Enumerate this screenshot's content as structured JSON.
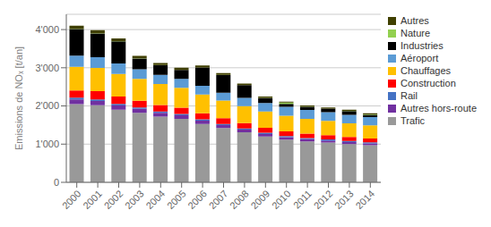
{
  "chart_data": {
    "type": "bar",
    "stacked": true,
    "ylabel": "Emissions de NOₓ [t/an]",
    "categories": [
      "2000",
      "2001",
      "2002",
      "2003",
      "2004",
      "2005",
      "2006",
      "2007",
      "2008",
      "2009",
      "2010",
      "2011",
      "2012",
      "2013",
      "2014"
    ],
    "series": [
      {
        "name": "Trafic",
        "color": "#999999",
        "values": [
          2050,
          2020,
          1900,
          1820,
          1720,
          1660,
          1530,
          1420,
          1310,
          1200,
          1120,
          1070,
          1040,
          1000,
          970
        ]
      },
      {
        "name": "Autres hors-route",
        "color": "#7030a0",
        "values": [
          120,
          110,
          115,
          105,
          100,
          95,
          85,
          75,
          70,
          65,
          60,
          58,
          55,
          52,
          50
        ]
      },
      {
        "name": "Rail",
        "color": "#4472c4",
        "values": [
          45,
          42,
          40,
          38,
          37,
          36,
          35,
          34,
          33,
          32,
          31,
          30,
          30,
          29,
          28
        ]
      },
      {
        "name": "Construction",
        "color": "#ff0000",
        "values": [
          190,
          215,
          190,
          175,
          170,
          165,
          160,
          150,
          140,
          130,
          125,
          115,
          110,
          105,
          100
        ]
      },
      {
        "name": "Chauffages",
        "color": "#ffc000",
        "values": [
          620,
          610,
          590,
          570,
          545,
          520,
          490,
          465,
          445,
          425,
          405,
          390,
          375,
          360,
          345
        ]
      },
      {
        "name": "Aéroport",
        "color": "#5b9bd5",
        "values": [
          290,
          280,
          275,
          255,
          245,
          235,
          225,
          205,
          215,
          225,
          235,
          232,
          228,
          222,
          218
        ]
      },
      {
        "name": "Industries",
        "color": "#000000",
        "values": [
          700,
          620,
          580,
          280,
          250,
          230,
          480,
          460,
          330,
          130,
          80,
          85,
          90,
          100,
          55
        ]
      },
      {
        "name": "Nature",
        "color": "#92d050",
        "values": [
          5,
          5,
          5,
          5,
          5,
          5,
          5,
          5,
          5,
          5,
          30,
          5,
          5,
          5,
          15
        ]
      },
      {
        "name": "Autres",
        "color": "#404000",
        "values": [
          80,
          85,
          75,
          65,
          55,
          55,
          50,
          45,
          40,
          35,
          25,
          25,
          28,
          28,
          25
        ]
      }
    ],
    "ylim": [
      0,
      4400
    ],
    "yticks": [
      0,
      {
        "value": 1000,
        "label": "1'000"
      },
      {
        "value": 2000,
        "label": "2'000"
      },
      {
        "value": 3000,
        "label": "3'000"
      },
      {
        "value": 4000,
        "label": "4'000"
      }
    ],
    "grid": true,
    "legend": "right"
  }
}
